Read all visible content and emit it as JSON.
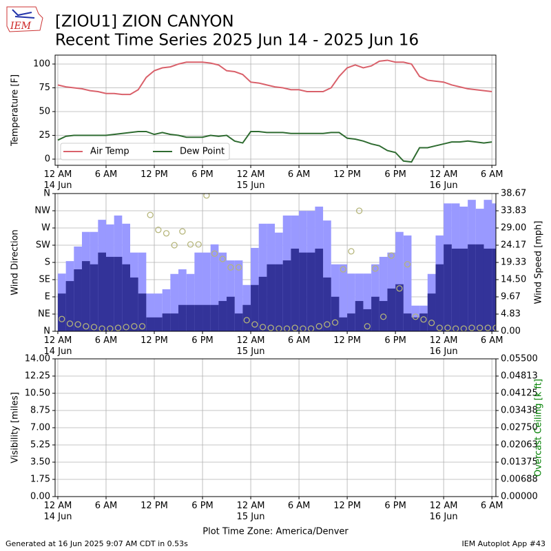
{
  "logo_text": "IEM",
  "title": "[ZIOU1] ZION CANYON",
  "subtitle": "Recent Time Series 2025 Jun 14 - 2025 Jun 16",
  "x_label": "Plot Time Zone: America/Denver",
  "footer_left": "Generated at 16 Jun 2025 9:07 AM CDT in 0.53s",
  "footer_right": "IEM Autoplot App #43",
  "chart_data": [
    {
      "type": "line",
      "y_label": "Temperature [F]",
      "legend": "lower left",
      "grid": true,
      "xlim": [
        -0.34,
        54.5
      ],
      "xticks": [
        {
          "value": 0,
          "label": [
            "12 AM",
            "14 Jun"
          ]
        },
        {
          "value": 6,
          "label": [
            "6 AM"
          ]
        },
        {
          "value": 12,
          "label": [
            "12 PM"
          ]
        },
        {
          "value": 18,
          "label": [
            "6 PM"
          ]
        },
        {
          "value": 24,
          "label": [
            "12 AM",
            "15 Jun"
          ]
        },
        {
          "value": 30,
          "label": [
            "6 AM"
          ]
        },
        {
          "value": 36,
          "label": [
            "12 PM"
          ]
        },
        {
          "value": 42,
          "label": [
            "6 PM"
          ]
        },
        {
          "value": 48,
          "label": [
            "12 AM",
            "16 Jun"
          ]
        },
        {
          "value": 54,
          "label": [
            "6 AM"
          ]
        }
      ],
      "ylim": [
        -6.5,
        109.4
      ],
      "yticks": [
        0,
        25,
        50,
        75,
        100
      ],
      "x": [
        0,
        1,
        2,
        3,
        4,
        5,
        6,
        7,
        8,
        9,
        10,
        11,
        12,
        13,
        14,
        15,
        16,
        17,
        18,
        19,
        20,
        21,
        22,
        23,
        24,
        25,
        26,
        27,
        28,
        29,
        30,
        31,
        32,
        33,
        34,
        35,
        36,
        37,
        38,
        39,
        40,
        41,
        42,
        43,
        44,
        45,
        46,
        47,
        48,
        49,
        50,
        51,
        52,
        53,
        54
      ],
      "series": [
        {
          "name": "Air Temp",
          "color": "#d9606a",
          "values": [
            78,
            76,
            75,
            74,
            72,
            71,
            69,
            69,
            68,
            68,
            73,
            86,
            93,
            96,
            97,
            100,
            102,
            102,
            102,
            101,
            99,
            93,
            92,
            89,
            81,
            80,
            78,
            76,
            75,
            73,
            73,
            71,
            71,
            71,
            75,
            87,
            96,
            99,
            96,
            98,
            103,
            104,
            102,
            102,
            100,
            87,
            83,
            82,
            81,
            78,
            76,
            74,
            73,
            72,
            71
          ]
        },
        {
          "name": "Dew Point",
          "color": "#2e6b30",
          "values": [
            20,
            24,
            25,
            25,
            25,
            25,
            25,
            26,
            27,
            28,
            29,
            29,
            26,
            28,
            26,
            25,
            23,
            23,
            23,
            25,
            24,
            25,
            19,
            17,
            29,
            29,
            28,
            28,
            28,
            27,
            27,
            27,
            27,
            27,
            28,
            28,
            22,
            21,
            19,
            16,
            14,
            9,
            7,
            -2,
            -3,
            12,
            12,
            14,
            16,
            18,
            18,
            19,
            18,
            17,
            18
          ]
        }
      ]
    },
    {
      "type": "bar",
      "y_label": "Wind Direction",
      "y2_label": "Wind Speed [mph]",
      "grid": true,
      "xlim": [
        -0.34,
        54.5
      ],
      "xticks": [
        {
          "value": 0,
          "label": [
            "12 AM",
            "14 Jun"
          ]
        },
        {
          "value": 6,
          "label": [
            "6 AM"
          ]
        },
        {
          "value": 12,
          "label": [
            "12 PM"
          ]
        },
        {
          "value": 18,
          "label": [
            "6 PM"
          ]
        },
        {
          "value": 24,
          "label": [
            "12 AM",
            "15 Jun"
          ]
        },
        {
          "value": 30,
          "label": [
            "6 AM"
          ]
        },
        {
          "value": 36,
          "label": [
            "12 PM"
          ]
        },
        {
          "value": 42,
          "label": [
            "6 PM"
          ]
        },
        {
          "value": 48,
          "label": [
            "12 AM",
            "16 Jun"
          ]
        },
        {
          "value": 54,
          "label": [
            "6 AM"
          ]
        }
      ],
      "ylim": [
        0,
        360
      ],
      "yticks": [
        {
          "value": 0,
          "label": "N"
        },
        {
          "value": 45,
          "label": "NE"
        },
        {
          "value": 90,
          "label": "E"
        },
        {
          "value": 135,
          "label": "SE"
        },
        {
          "value": 180,
          "label": "S"
        },
        {
          "value": 225,
          "label": "SW"
        },
        {
          "value": 270,
          "label": "W"
        },
        {
          "value": 315,
          "label": "NW"
        },
        {
          "value": 360,
          "label": "N"
        }
      ],
      "y2lim": [
        0,
        38.67
      ],
      "y2ticks": [
        {
          "value": 0,
          "label": "0.00"
        },
        4.83,
        9.67,
        {
          "value": 14.5,
          "label": "14.50"
        },
        19.33,
        24.17,
        {
          "value": 29,
          "label": "29.00"
        },
        33.83,
        38.67
      ],
      "x": [
        0,
        1,
        2,
        3,
        4,
        5,
        6,
        7,
        8,
        9,
        10,
        11,
        12,
        13,
        14,
        15,
        16,
        17,
        18,
        19,
        20,
        21,
        22,
        23,
        24,
        25,
        26,
        27,
        28,
        29,
        30,
        31,
        32,
        33,
        34,
        35,
        36,
        37,
        38,
        39,
        40,
        41,
        42,
        43,
        44,
        45,
        46,
        47,
        48,
        49,
        50,
        51,
        52,
        53,
        54
      ],
      "series": [
        {
          "type": "bar",
          "axis": "y2",
          "color": "#9999ff",
          "values": [
            16.2,
            19.7,
            23.8,
            27.9,
            27.9,
            31.3,
            30.0,
            32.5,
            30.2,
            22.1,
            22.1,
            10.6,
            10.6,
            11.8,
            16.1,
            17.4,
            16.1,
            22.1,
            22.1,
            24.4,
            22.1,
            19.9,
            19.9,
            13.0,
            23.4,
            30.2,
            30.2,
            27.7,
            32.5,
            32.5,
            33.8,
            33.8,
            35.0,
            31.1,
            18.8,
            18.8,
            16.2,
            16.2,
            16.2,
            18.8,
            20.9,
            22.1,
            27.9,
            26.9,
            7.2,
            7.2,
            16.1,
            26.9,
            35.9,
            35.9,
            35.0,
            36.9,
            34.4,
            36.9,
            35.9
          ]
        },
        {
          "type": "bar",
          "axis": "y2",
          "color": "#333399",
          "values": [
            10.6,
            14.1,
            17.4,
            19.7,
            18.8,
            22.1,
            20.9,
            20.9,
            18.8,
            15.1,
            10.6,
            3.9,
            3.9,
            5.0,
            5.0,
            7.4,
            7.4,
            7.4,
            7.4,
            7.4,
            8.5,
            9.7,
            5.0,
            7.4,
            13.0,
            15.3,
            18.8,
            18.8,
            19.9,
            23.2,
            22.1,
            22.1,
            23.2,
            15.1,
            9.7,
            3.9,
            5.0,
            8.5,
            6.2,
            9.7,
            8.5,
            12.0,
            13.2,
            5.0,
            3.9,
            5.0,
            10.6,
            18.8,
            24.4,
            23.2,
            23.2,
            24.4,
            24.4,
            23.2,
            23.2
          ]
        },
        {
          "type": "scatter",
          "color": "#b5b57a",
          "values": [
            32,
            20,
            18,
            13,
            11,
            7,
            7,
            9,
            11,
            13,
            13,
            304,
            265,
            256,
            225,
            261,
            227,
            227,
            355,
            203,
            189,
            167,
            167,
            29,
            18,
            11,
            9,
            7,
            7,
            9,
            7,
            7,
            13,
            18,
            23,
            162,
            209,
            315,
            13,
            164,
            38,
            198,
            112,
            175,
            38,
            31,
            22,
            9,
            9,
            7,
            7,
            9,
            9,
            9,
            9
          ]
        }
      ]
    },
    {
      "type": "line",
      "y_label": "Visibility [miles]",
      "y2_label": "Overcast Ceiling [k ft]",
      "y2_color": "#008000",
      "grid": true,
      "xlim": [
        -0.34,
        54.5
      ],
      "xticks": [
        {
          "value": 0,
          "label": [
            "12 AM",
            "14 Jun"
          ]
        },
        {
          "value": 6,
          "label": [
            "6 AM"
          ]
        },
        {
          "value": 12,
          "label": [
            "12 PM"
          ]
        },
        {
          "value": 18,
          "label": [
            "6 PM"
          ]
        },
        {
          "value": 24,
          "label": [
            "12 AM",
            "15 Jun"
          ]
        },
        {
          "value": 30,
          "label": [
            "6 AM"
          ]
        },
        {
          "value": 36,
          "label": [
            "12 PM"
          ]
        },
        {
          "value": 42,
          "label": [
            "6 PM"
          ]
        },
        {
          "value": 48,
          "label": [
            "12 AM",
            "16 Jun"
          ]
        },
        {
          "value": 54,
          "label": [
            "6 AM"
          ]
        }
      ],
      "ylim": [
        0,
        14
      ],
      "yticks": [
        {
          "value": 0,
          "label": "0.00"
        },
        1.75,
        {
          "value": 3.5,
          "label": "3.50"
        },
        5.25,
        {
          "value": 7,
          "label": "7.00"
        },
        8.75,
        {
          "value": 10.5,
          "label": "10.50"
        },
        12.25,
        {
          "value": 14,
          "label": "14.00"
        }
      ],
      "y2lim": [
        0,
        0.055
      ],
      "y2ticks": [
        {
          "value": 0,
          "label": "0.00000"
        },
        {
          "value": 0.006875,
          "label": "0.00688"
        },
        0.01375,
        {
          "value": 0.020625,
          "label": "0.02063"
        },
        {
          "value": 0.0275,
          "label": "0.02750"
        },
        {
          "value": 0.034375,
          "label": "0.03438"
        },
        0.04125,
        {
          "value": 0.048125,
          "label": "0.04813"
        },
        {
          "value": 0.055,
          "label": "0.05500"
        }
      ],
      "series": []
    }
  ]
}
